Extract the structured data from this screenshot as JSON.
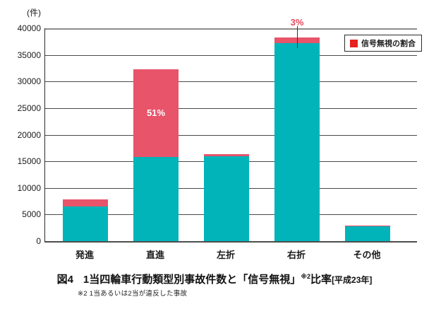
{
  "unit_label": "(件)",
  "legend": {
    "label": "信号無視の割合",
    "swatch_color": "#e6231e"
  },
  "caption": {
    "figure_label": "図4",
    "title_main": "1当四輪車行動類型別事故件数と「信号無視」",
    "title_sup": "※2",
    "title_rest": "比率",
    "title_period": "[平成23年]",
    "footnote": "※2 1当あるいは2当が違反した事故"
  },
  "chart_data": {
    "type": "bar",
    "stacked": true,
    "title": "1当四輪車行動類型別事故件数と「信号無視」比率 [平成23年]",
    "unit": "件",
    "categories": [
      "発進",
      "直進",
      "左折",
      "右折",
      "その他"
    ],
    "series": [
      {
        "name": "",
        "color": "#00b4ba",
        "values": [
          6500,
          15800,
          16000,
          37200,
          2800
        ]
      },
      {
        "name": "信号無視の割合",
        "color": "#e8546a",
        "values": [
          1300,
          16500,
          400,
          1100,
          100
        ]
      }
    ],
    "totals": [
      7800,
      32300,
      16400,
      38300,
      2900
    ],
    "ylim": [
      0,
      40000
    ],
    "yticks": [
      0,
      5000,
      10000,
      15000,
      20000,
      25000,
      30000,
      35000,
      40000
    ],
    "grid": true,
    "legend_position": "top-right-inside",
    "annotations": [
      {
        "text": "51%",
        "category_index": 1,
        "placement": "inside-signal-segment",
        "color": "#ffffff"
      },
      {
        "text": "3%",
        "category_index": 3,
        "placement": "callout-above",
        "color": "#e8485c"
      }
    ]
  }
}
